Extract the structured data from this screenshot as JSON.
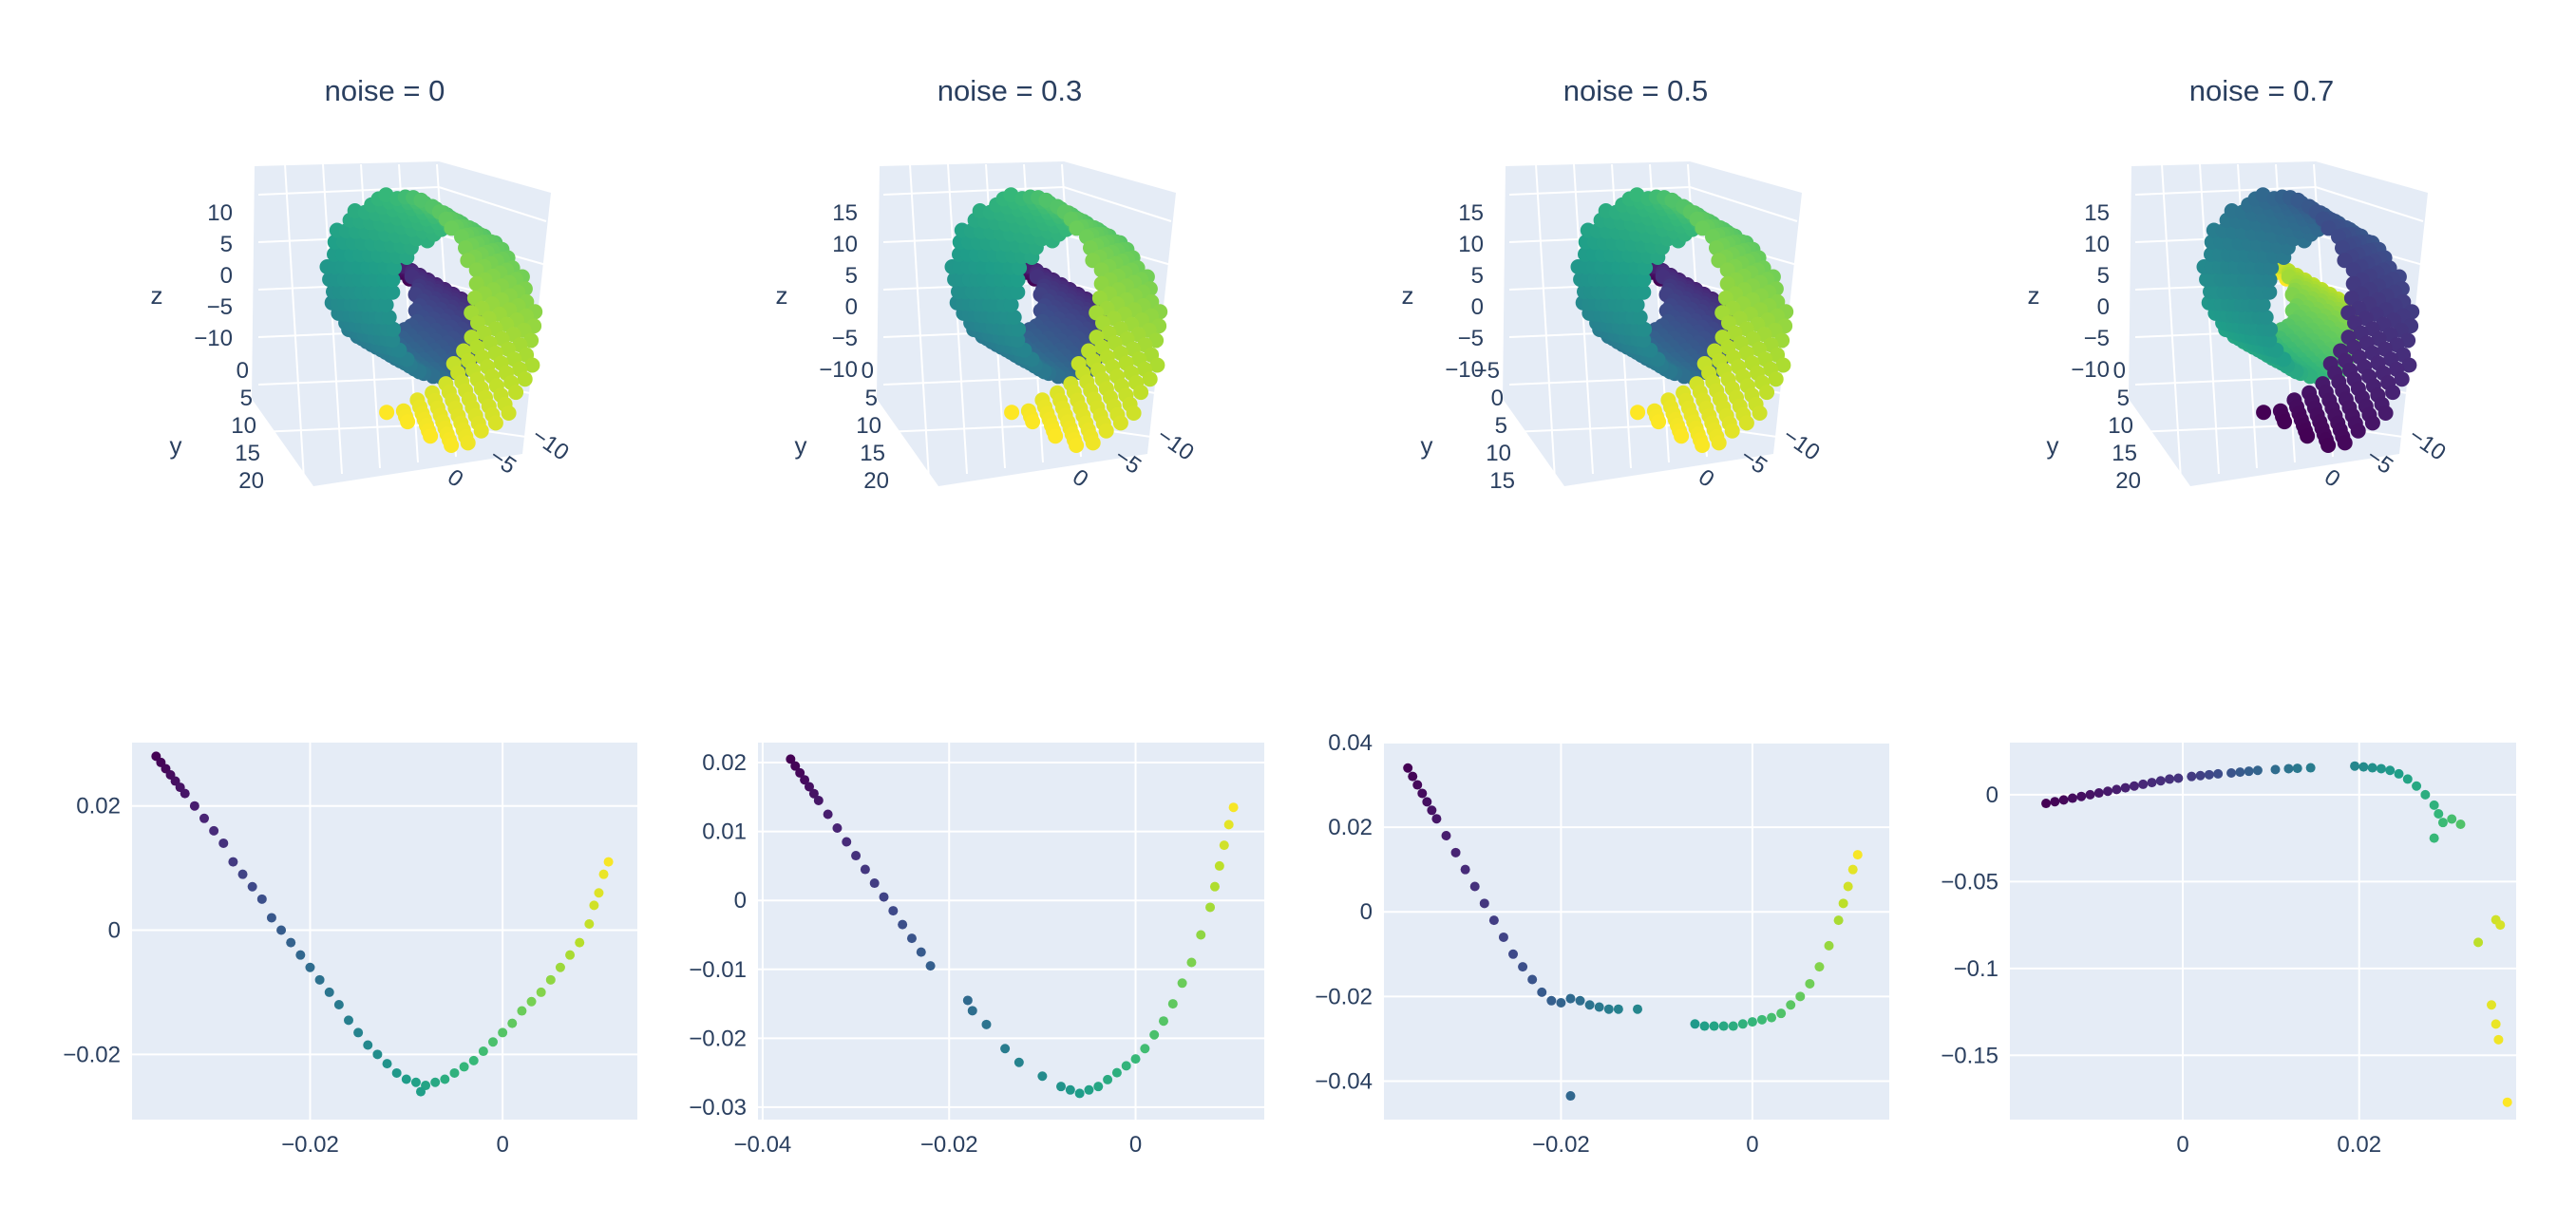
{
  "chart_data": [
    {
      "type": "scatter3d",
      "title": "noise = 0",
      "axes": {
        "x": "x",
        "y": "y",
        "z": "z"
      },
      "z_ticks": [
        "10",
        "5",
        "0",
        "−5",
        "−10"
      ],
      "y_ticks": [
        "0",
        "5",
        "10",
        "15",
        "20"
      ],
      "x_ticks": [
        "0",
        "−5",
        "−10"
      ],
      "shape": "swiss roll",
      "colorscale": "viridis"
    },
    {
      "type": "scatter3d",
      "title": "noise = 0.3",
      "axes": {
        "x": "x",
        "y": "y",
        "z": "z"
      },
      "z_ticks": [
        "15",
        "10",
        "5",
        "0",
        "−5",
        "−10"
      ],
      "y_ticks": [
        "0",
        "5",
        "10",
        "15",
        "20"
      ],
      "x_ticks": [
        "0",
        "−5",
        "−10"
      ],
      "shape": "swiss roll",
      "colorscale": "viridis"
    },
    {
      "type": "scatter3d",
      "title": "noise = 0.5",
      "axes": {
        "x": "x",
        "y": "y",
        "z": "z"
      },
      "z_ticks": [
        "15",
        "10",
        "5",
        "0",
        "−5",
        "−10"
      ],
      "y_ticks": [
        "−5",
        "0",
        "5",
        "10",
        "15"
      ],
      "x_ticks": [
        "0",
        "−5",
        "−10"
      ],
      "shape": "swiss roll",
      "colorscale": "viridis"
    },
    {
      "type": "scatter3d",
      "title": "noise = 0.7",
      "axes": {
        "x": "x",
        "y": "y",
        "z": "z"
      },
      "z_ticks": [
        "15",
        "10",
        "5",
        "0",
        "−5",
        "−10"
      ],
      "y_ticks": [
        "0",
        "5",
        "10",
        "15",
        "20"
      ],
      "x_ticks": [
        "0",
        "−5",
        "−10"
      ],
      "shape": "swiss roll",
      "colorscale": "viridis"
    },
    {
      "type": "scatter",
      "colorscale": "viridis",
      "xlim": [
        -0.0385,
        0.014
      ],
      "ylim": [
        -0.0305,
        0.0302
      ],
      "x_ticks": [
        -0.02,
        0
      ],
      "x_tick_labels": [
        "−0.02",
        "0"
      ],
      "y_ticks": [
        -0.02,
        0,
        0.02
      ],
      "y_tick_labels": [
        "−0.02",
        "0",
        "0.02"
      ],
      "points": [
        [
          -0.036,
          0.028,
          0
        ],
        [
          -0.0355,
          0.027,
          0.01
        ],
        [
          -0.035,
          0.026,
          0.02
        ],
        [
          -0.0345,
          0.025,
          0.03
        ],
        [
          -0.034,
          0.024,
          0.04
        ],
        [
          -0.0335,
          0.023,
          0.05
        ],
        [
          -0.033,
          0.022,
          0.06
        ],
        [
          -0.032,
          0.02,
          0.08
        ],
        [
          -0.031,
          0.018,
          0.1
        ],
        [
          -0.03,
          0.016,
          0.12
        ],
        [
          -0.029,
          0.014,
          0.14
        ],
        [
          -0.028,
          0.011,
          0.17
        ],
        [
          -0.027,
          0.009,
          0.2
        ],
        [
          -0.026,
          0.007,
          0.22
        ],
        [
          -0.025,
          0.005,
          0.24
        ],
        [
          -0.024,
          0.002,
          0.27
        ],
        [
          -0.023,
          0,
          0.29
        ],
        [
          -0.022,
          -0.002,
          0.31
        ],
        [
          -0.021,
          -0.004,
          0.33
        ],
        [
          -0.02,
          -0.006,
          0.35
        ],
        [
          -0.019,
          -0.008,
          0.37
        ],
        [
          -0.018,
          -0.01,
          0.39
        ],
        [
          -0.017,
          -0.012,
          0.41
        ],
        [
          -0.016,
          -0.0145,
          0.43
        ],
        [
          -0.015,
          -0.0165,
          0.45
        ],
        [
          -0.014,
          -0.0185,
          0.47
        ],
        [
          -0.013,
          -0.02,
          0.49
        ],
        [
          -0.012,
          -0.0215,
          0.51
        ],
        [
          -0.011,
          -0.023,
          0.53
        ],
        [
          -0.01,
          -0.024,
          0.55
        ],
        [
          -0.009,
          -0.0245,
          0.57
        ],
        [
          -0.008,
          -0.025,
          0.58
        ],
        [
          -0.0085,
          -0.026,
          0.56
        ],
        [
          -0.007,
          -0.0245,
          0.6
        ],
        [
          -0.006,
          -0.024,
          0.62
        ],
        [
          -0.005,
          -0.023,
          0.64
        ],
        [
          -0.004,
          -0.022,
          0.66
        ],
        [
          -0.003,
          -0.021,
          0.67
        ],
        [
          -0.002,
          -0.0195,
          0.69
        ],
        [
          -0.001,
          -0.018,
          0.71
        ],
        [
          0,
          -0.0165,
          0.73
        ],
        [
          0.001,
          -0.015,
          0.75
        ],
        [
          0.002,
          -0.013,
          0.77
        ],
        [
          0.003,
          -0.0115,
          0.79
        ],
        [
          0.004,
          -0.01,
          0.81
        ],
        [
          0.005,
          -0.008,
          0.83
        ],
        [
          0.006,
          -0.006,
          0.85
        ],
        [
          0.007,
          -0.004,
          0.87
        ],
        [
          0.008,
          -0.002,
          0.89
        ],
        [
          0.009,
          0.001,
          0.91
        ],
        [
          0.0095,
          0.004,
          0.93
        ],
        [
          0.01,
          0.006,
          0.95
        ],
        [
          0.0105,
          0.009,
          0.97
        ],
        [
          0.011,
          0.011,
          0.99
        ]
      ]
    },
    {
      "type": "scatter",
      "colorscale": "viridis",
      "xlim": [
        -0.0405,
        0.0138
      ],
      "ylim": [
        -0.0318,
        0.0229
      ],
      "x_ticks": [
        -0.04,
        -0.02,
        0
      ],
      "x_tick_labels": [
        "−0.04",
        "−0.02",
        "0"
      ],
      "y_ticks": [
        -0.03,
        -0.02,
        -0.01,
        0,
        0.01,
        0.02
      ],
      "y_tick_labels": [
        "−0.03",
        "−0.02",
        "−0.01",
        "0",
        "0.01",
        "0.02"
      ],
      "points": [
        [
          -0.037,
          0.0205,
          0
        ],
        [
          -0.0365,
          0.0195,
          0.01
        ],
        [
          -0.036,
          0.0185,
          0.02
        ],
        [
          -0.0355,
          0.0175,
          0.03
        ],
        [
          -0.035,
          0.0165,
          0.04
        ],
        [
          -0.0345,
          0.0155,
          0.05
        ],
        [
          -0.034,
          0.0145,
          0.06
        ],
        [
          -0.033,
          0.0125,
          0.08
        ],
        [
          -0.032,
          0.0105,
          0.1
        ],
        [
          -0.031,
          0.0085,
          0.12
        ],
        [
          -0.03,
          0.0065,
          0.14
        ],
        [
          -0.029,
          0.0045,
          0.16
        ],
        [
          -0.028,
          0.0025,
          0.18
        ],
        [
          -0.027,
          0.0005,
          0.2
        ],
        [
          -0.026,
          -0.0015,
          0.22
        ],
        [
          -0.025,
          -0.0035,
          0.24
        ],
        [
          -0.024,
          -0.0055,
          0.26
        ],
        [
          -0.023,
          -0.0075,
          0.28
        ],
        [
          -0.022,
          -0.0095,
          0.3
        ],
        [
          -0.018,
          -0.0145,
          0.34
        ],
        [
          -0.0175,
          -0.016,
          0.36
        ],
        [
          -0.016,
          -0.018,
          0.38
        ],
        [
          -0.014,
          -0.0215,
          0.42
        ],
        [
          -0.0125,
          -0.0235,
          0.45
        ],
        [
          -0.01,
          -0.0255,
          0.48
        ],
        [
          -0.008,
          -0.027,
          0.51
        ],
        [
          -0.007,
          -0.0275,
          0.53
        ],
        [
          -0.006,
          -0.028,
          0.55
        ],
        [
          -0.005,
          -0.0275,
          0.57
        ],
        [
          -0.004,
          -0.027,
          0.59
        ],
        [
          -0.003,
          -0.026,
          0.61
        ],
        [
          -0.002,
          -0.025,
          0.63
        ],
        [
          -0.001,
          -0.024,
          0.65
        ],
        [
          0,
          -0.023,
          0.67
        ],
        [
          0.001,
          -0.0215,
          0.69
        ],
        [
          0.002,
          -0.0195,
          0.71
        ],
        [
          0.003,
          -0.0175,
          0.73
        ],
        [
          0.004,
          -0.015,
          0.75
        ],
        [
          0.005,
          -0.012,
          0.77
        ],
        [
          0.006,
          -0.009,
          0.8
        ],
        [
          0.007,
          -0.005,
          0.83
        ],
        [
          0.008,
          -0.001,
          0.86
        ],
        [
          0.0085,
          0.002,
          0.88
        ],
        [
          0.009,
          0.005,
          0.9
        ],
        [
          0.0095,
          0.008,
          0.93
        ],
        [
          0.01,
          0.011,
          0.96
        ],
        [
          0.0105,
          0.0135,
          0.99
        ]
      ]
    },
    {
      "type": "scatter",
      "colorscale": "viridis",
      "xlim": [
        -0.0385,
        0.0143
      ],
      "ylim": [
        -0.0491,
        0.04
      ],
      "x_ticks": [
        -0.02,
        0
      ],
      "x_tick_labels": [
        "−0.02",
        "0"
      ],
      "y_ticks": [
        -0.04,
        -0.02,
        0,
        0.02,
        0.04
      ],
      "y_tick_labels": [
        "−0.04",
        "−0.02",
        "0",
        "0.02",
        "0.04"
      ],
      "points": [
        [
          -0.036,
          0.034,
          0
        ],
        [
          -0.0355,
          0.032,
          0.01
        ],
        [
          -0.035,
          0.03,
          0.02
        ],
        [
          -0.0345,
          0.028,
          0.03
        ],
        [
          -0.034,
          0.026,
          0.04
        ],
        [
          -0.0335,
          0.024,
          0.05
        ],
        [
          -0.033,
          0.022,
          0.06
        ],
        [
          -0.032,
          0.018,
          0.08
        ],
        [
          -0.031,
          0.014,
          0.1
        ],
        [
          -0.03,
          0.01,
          0.12
        ],
        [
          -0.029,
          0.006,
          0.14
        ],
        [
          -0.028,
          0.002,
          0.16
        ],
        [
          -0.027,
          -0.002,
          0.18
        ],
        [
          -0.026,
          -0.006,
          0.2
        ],
        [
          -0.025,
          -0.01,
          0.22
        ],
        [
          -0.024,
          -0.013,
          0.24
        ],
        [
          -0.023,
          -0.016,
          0.26
        ],
        [
          -0.022,
          -0.019,
          0.28
        ],
        [
          -0.021,
          -0.021,
          0.3
        ],
        [
          -0.02,
          -0.0215,
          0.32
        ],
        [
          -0.019,
          -0.0205,
          0.34
        ],
        [
          -0.018,
          -0.021,
          0.36
        ],
        [
          -0.017,
          -0.022,
          0.38
        ],
        [
          -0.016,
          -0.0225,
          0.4
        ],
        [
          -0.015,
          -0.023,
          0.42
        ],
        [
          -0.014,
          -0.023,
          0.44
        ],
        [
          -0.012,
          -0.023,
          0.46
        ],
        [
          -0.019,
          -0.0435,
          0.33
        ],
        [
          -0.006,
          -0.0265,
          0.54
        ],
        [
          -0.005,
          -0.027,
          0.56
        ],
        [
          -0.004,
          -0.027,
          0.58
        ],
        [
          -0.003,
          -0.027,
          0.6
        ],
        [
          -0.002,
          -0.027,
          0.62
        ],
        [
          -0.001,
          -0.0265,
          0.64
        ],
        [
          0,
          -0.026,
          0.66
        ],
        [
          0.001,
          -0.0255,
          0.68
        ],
        [
          0.002,
          -0.025,
          0.7
        ],
        [
          0.003,
          -0.024,
          0.72
        ],
        [
          0.004,
          -0.022,
          0.74
        ],
        [
          0.005,
          -0.02,
          0.76
        ],
        [
          0.006,
          -0.017,
          0.78
        ],
        [
          0.007,
          -0.013,
          0.81
        ],
        [
          0.008,
          -0.008,
          0.84
        ],
        [
          0.009,
          -0.002,
          0.87
        ],
        [
          0.0095,
          0.002,
          0.9
        ],
        [
          0.01,
          0.006,
          0.93
        ],
        [
          0.0105,
          0.01,
          0.96
        ],
        [
          0.011,
          0.0135,
          0.99
        ]
      ]
    },
    {
      "type": "scatter",
      "colorscale": "viridis",
      "xlim": [
        -0.0196,
        0.0378
      ],
      "ylim": [
        -0.187,
        0.03
      ],
      "x_ticks": [
        0,
        0.02
      ],
      "x_tick_labels": [
        "0",
        "0.02"
      ],
      "y_ticks": [
        -0.15,
        -0.1,
        -0.05,
        0
      ],
      "y_tick_labels": [
        "−0.15",
        "−0.1",
        "−0.05",
        "0"
      ],
      "points": [
        [
          -0.0155,
          -0.005,
          0
        ],
        [
          -0.0145,
          -0.004,
          0.01
        ],
        [
          -0.0135,
          -0.003,
          0.02
        ],
        [
          -0.0125,
          -0.002,
          0.03
        ],
        [
          -0.0115,
          -0.001,
          0.04
        ],
        [
          -0.0105,
          0,
          0.05
        ],
        [
          -0.0095,
          0.001,
          0.06
        ],
        [
          -0.0085,
          0.002,
          0.07
        ],
        [
          -0.0075,
          0.003,
          0.08
        ],
        [
          -0.0065,
          0.004,
          0.09
        ],
        [
          -0.0055,
          0.005,
          0.1
        ],
        [
          -0.0045,
          0.006,
          0.11
        ],
        [
          -0.0035,
          0.007,
          0.12
        ],
        [
          -0.0025,
          0.008,
          0.13
        ],
        [
          -0.0015,
          0.009,
          0.14
        ],
        [
          -0.0005,
          0.0095,
          0.15
        ],
        [
          0.001,
          0.0105,
          0.17
        ],
        [
          0.002,
          0.011,
          0.19
        ],
        [
          0.003,
          0.0115,
          0.21
        ],
        [
          0.004,
          0.012,
          0.23
        ],
        [
          0.0055,
          0.0125,
          0.26
        ],
        [
          0.0065,
          0.013,
          0.28
        ],
        [
          0.0075,
          0.0135,
          0.3
        ],
        [
          0.0085,
          0.014,
          0.32
        ],
        [
          0.0105,
          0.0145,
          0.35
        ],
        [
          0.012,
          0.015,
          0.38
        ],
        [
          0.013,
          0.0152,
          0.4
        ],
        [
          0.0145,
          0.0155,
          0.42
        ],
        [
          0.0195,
          0.0165,
          0.46
        ],
        [
          0.0205,
          0.016,
          0.48
        ],
        [
          0.0215,
          0.0155,
          0.5
        ],
        [
          0.0225,
          0.015,
          0.52
        ],
        [
          0.0235,
          0.014,
          0.54
        ],
        [
          0.0245,
          0.012,
          0.56
        ],
        [
          0.0255,
          0.009,
          0.58
        ],
        [
          0.0265,
          0.005,
          0.6
        ],
        [
          0.0275,
          0.0,
          0.62
        ],
        [
          0.0285,
          -0.006,
          0.64
        ],
        [
          0.029,
          -0.011,
          0.66
        ],
        [
          0.0295,
          -0.016,
          0.68
        ],
        [
          0.0305,
          -0.014,
          0.7
        ],
        [
          0.0315,
          -0.017,
          0.72
        ],
        [
          0.0285,
          -0.025,
          0.67
        ],
        [
          0.0355,
          -0.072,
          0.93
        ],
        [
          0.036,
          -0.075,
          0.94
        ],
        [
          0.0335,
          -0.085,
          0.9
        ],
        [
          0.035,
          -0.121,
          0.96
        ],
        [
          0.0355,
          -0.132,
          0.97
        ],
        [
          0.0358,
          -0.141,
          0.98
        ],
        [
          0.0368,
          -0.177,
          1.0
        ]
      ]
    }
  ]
}
